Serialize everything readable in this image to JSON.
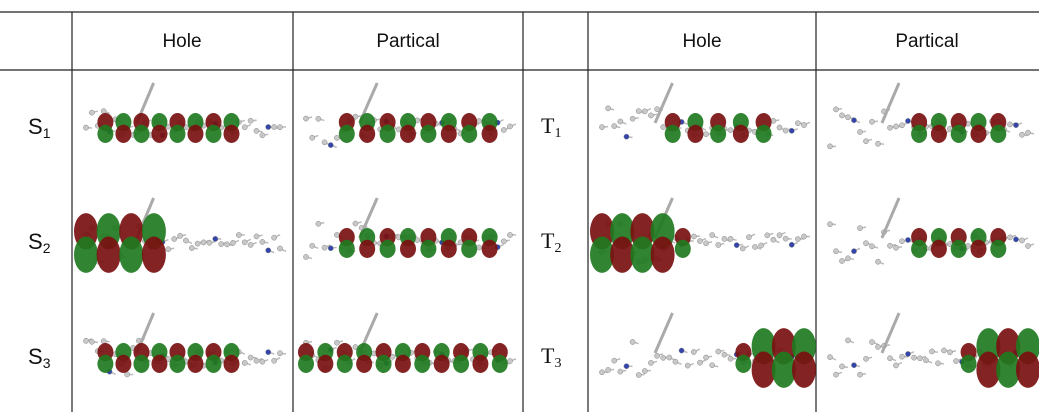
{
  "table": {
    "header": [
      "Hole",
      "Partical",
      "Hole",
      "Partical"
    ],
    "rows": [
      {
        "singlet": {
          "letter": "S",
          "index": "1"
        },
        "triplet": {
          "letter": "T",
          "index": "1"
        }
      },
      {
        "singlet": {
          "letter": "S",
          "index": "2"
        },
        "triplet": {
          "letter": "T",
          "index": "2"
        }
      },
      {
        "singlet": {
          "letter": "S",
          "index": "3"
        },
        "triplet": {
          "letter": "T",
          "index": "3"
        }
      }
    ]
  }
}
